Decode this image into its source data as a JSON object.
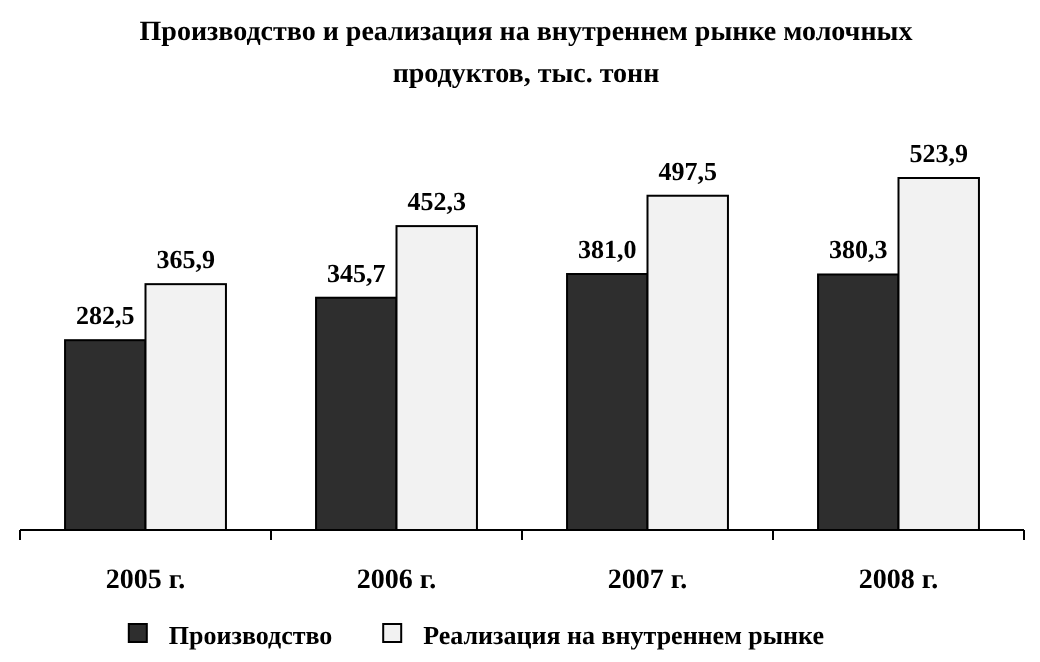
{
  "chart_data": {
    "type": "bar",
    "title": "Производство и реализация на внутреннем рынке молочных продуктов, тыс. тонн",
    "categories": [
      "2005 г.",
      "2006 г.",
      "2007 г.",
      "2008 г."
    ],
    "series": [
      {
        "name": "Производство",
        "color": "#2e2e2e",
        "values": [
          282.5,
          345.7,
          381.0,
          380.3
        ],
        "value_labels": [
          "282,5",
          "345,7",
          "381,0",
          "380,3"
        ]
      },
      {
        "name": "Реализация на внутреннем рынке",
        "color": "#f2f2f2",
        "values": [
          365.9,
          452.3,
          497.5,
          523.9
        ],
        "value_labels": [
          "365,9",
          "452,3",
          "497,5",
          "523,9"
        ]
      }
    ],
    "legend": "bottom"
  }
}
